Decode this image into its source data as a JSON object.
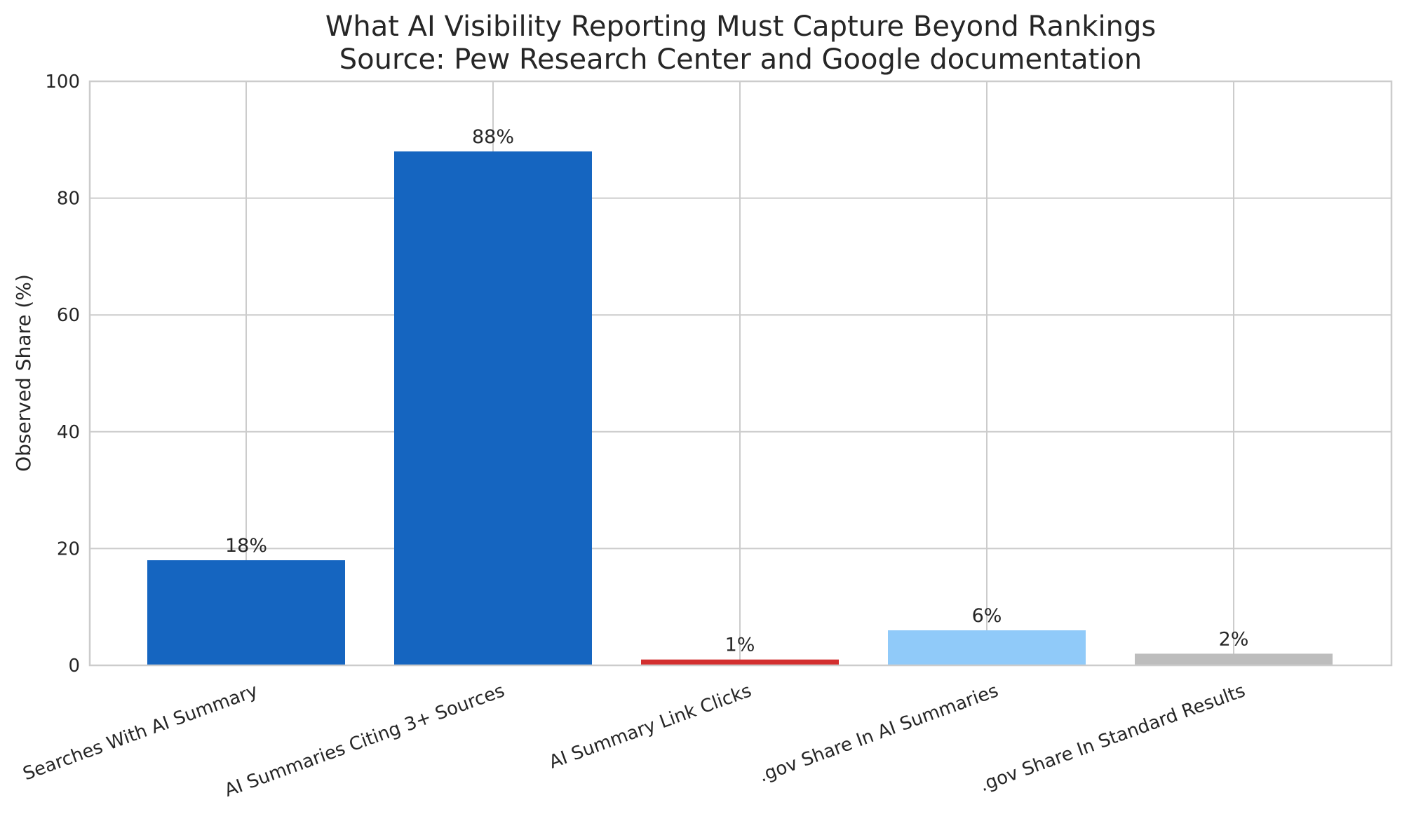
{
  "chart_data": {
    "type": "bar",
    "title": "What AI Visibility Reporting Must Capture Beyond Rankings",
    "subtitle": "Source: Pew Research Center and Google documentation",
    "xlabel": "",
    "ylabel": "Observed Share (%)",
    "ylim": [
      0,
      100
    ],
    "yticks": [
      0,
      20,
      40,
      60,
      80,
      100
    ],
    "grid": true,
    "categories": [
      "Searches With AI Summary",
      "AI Summaries Citing 3+ Sources",
      "AI Summary Link Clicks",
      ".gov Share In AI Summaries",
      ".gov Share In Standard Results"
    ],
    "values": [
      18,
      88,
      1,
      6,
      2
    ],
    "data_labels": [
      "18%",
      "88%",
      "1%",
      "6%",
      "2%"
    ],
    "colors": [
      "#1565c0",
      "#1565c0",
      "#d32f2f",
      "#90caf9",
      "#bdbdbd"
    ]
  }
}
